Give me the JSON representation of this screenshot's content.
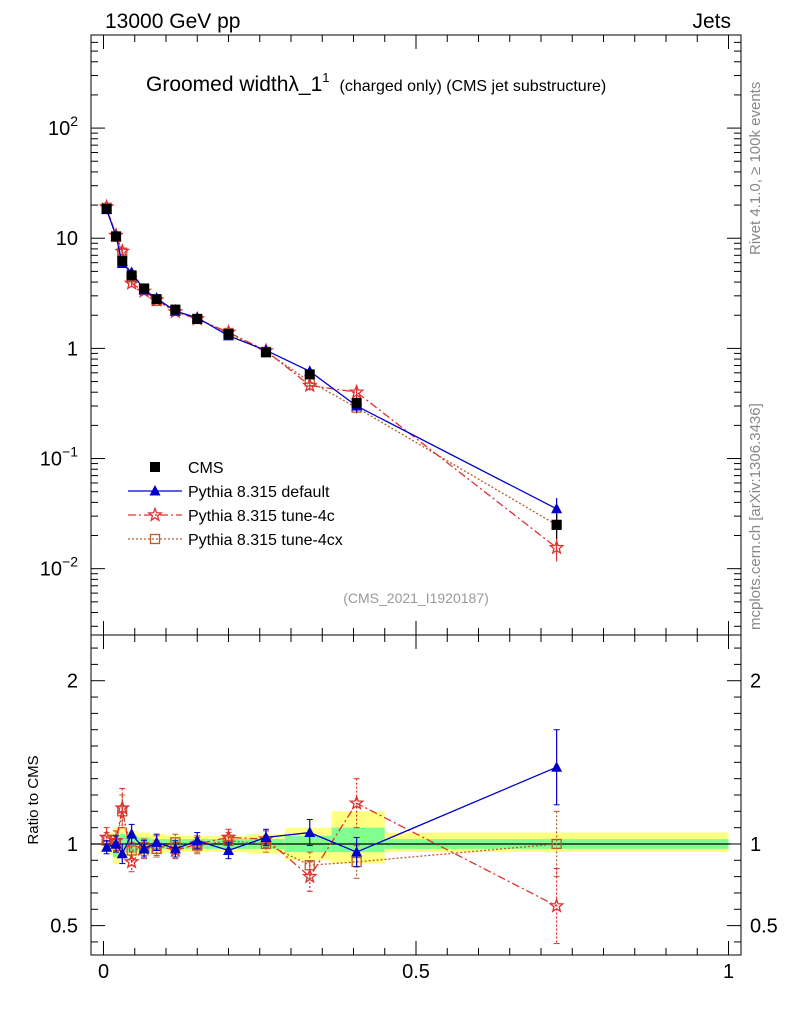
{
  "header": {
    "left": "13000 GeV pp",
    "right": "Jets"
  },
  "side_labels": {
    "rivet": "Rivet 4.1.0, ≥ 100k events",
    "mcplots": "mcplots.cern.ch [arXiv:1306.3436]"
  },
  "title": {
    "main": "Groomed widthλ_1",
    "sup": "1",
    "sub": "(charged only) (CMS jet substructure)"
  },
  "analysis_id": "(CMS_2021_I1920187)",
  "colors": {
    "cms": "#000000",
    "default": "#0000cc",
    "tune4c": "#e03030",
    "tune4cx": "#b85c2e",
    "band_inner": "#80ff90",
    "band_outer": "#ffff80"
  },
  "chart_data": [
    {
      "type": "line",
      "scale": "log",
      "xlim": [
        -0.02,
        1.02
      ],
      "ylim": [
        0.0025,
        700
      ],
      "y_ticks": [
        {
          "value": 100,
          "label": "10",
          "exp": "2"
        },
        {
          "value": 10,
          "label": "10",
          "exp": ""
        },
        {
          "value": 1,
          "label": "1",
          "exp": ""
        },
        {
          "value": 0.1,
          "label": "10",
          "exp": "−1"
        },
        {
          "value": 0.01,
          "label": "10",
          "exp": "−2"
        }
      ],
      "x": [
        0.005,
        0.02,
        0.03,
        0.045,
        0.065,
        0.085,
        0.115,
        0.15,
        0.2,
        0.26,
        0.33,
        0.405,
        0.725
      ],
      "series": [
        {
          "name": "CMS",
          "key": "cms",
          "marker": "square",
          "values": [
            18.5,
            10.4,
            6.2,
            4.6,
            3.5,
            2.8,
            2.25,
            1.85,
            1.35,
            0.92,
            0.58,
            0.32,
            0.025
          ]
        },
        {
          "name": "Pythia 8.315 default",
          "key": "default",
          "marker": "triangle",
          "values": [
            18.2,
            10.5,
            5.9,
            4.9,
            3.4,
            2.85,
            2.18,
            1.9,
            1.3,
            0.96,
            0.62,
            0.3,
            0.035
          ]
        },
        {
          "name": "Pythia 8.315 tune-4c",
          "key": "tune4c",
          "marker": "star",
          "values": [
            19.2,
            10.6,
            7.6,
            3.9,
            3.3,
            2.75,
            2.15,
            1.85,
            1.4,
            0.95,
            0.46,
            0.4,
            0.0155
          ]
        },
        {
          "name": "Pythia 8.315 tune-4cx",
          "key": "tune4cx",
          "marker": "open-square",
          "values": [
            18.9,
            10.3,
            7.4,
            4.4,
            3.4,
            2.7,
            2.2,
            1.85,
            1.38,
            0.93,
            0.5,
            0.29,
            0.025
          ]
        }
      ]
    },
    {
      "type": "line",
      "scale": "linear",
      "ylabel": "Ratio to CMS",
      "xlim": [
        -0.02,
        1.02
      ],
      "ylim": [
        0.32,
        2.28
      ],
      "y_ticks": [
        {
          "value": 2,
          "label": "2"
        },
        {
          "value": 1,
          "label": "1"
        },
        {
          "value": 0.5,
          "label": "0.5"
        }
      ],
      "x_ticks": [
        {
          "value": 0,
          "label": "0"
        },
        {
          "value": 0.5,
          "label": "0.5"
        },
        {
          "value": 1,
          "label": "1"
        }
      ],
      "bands": [
        {
          "x0": 0.01,
          "x1": 0.015,
          "inner": [
            0.97,
            1.03
          ],
          "outer": [
            0.93,
            1.07
          ]
        },
        {
          "x0": 0.015,
          "x1": 0.025,
          "inner": [
            0.92,
            1.06
          ],
          "outer": [
            0.88,
            1.1
          ]
        },
        {
          "x0": 0.025,
          "x1": 0.035,
          "inner": [
            0.95,
            1.06
          ],
          "outer": [
            0.91,
            1.1
          ]
        },
        {
          "x0": 0.035,
          "x1": 0.055,
          "inner": [
            0.95,
            1.05
          ],
          "outer": [
            0.92,
            1.08
          ]
        },
        {
          "x0": 0.055,
          "x1": 0.075,
          "inner": [
            0.96,
            1.04
          ],
          "outer": [
            0.93,
            1.07
          ]
        },
        {
          "x0": 0.075,
          "x1": 0.1,
          "inner": [
            0.97,
            1.03
          ],
          "outer": [
            0.94,
            1.06
          ]
        },
        {
          "x0": 0.1,
          "x1": 0.13,
          "inner": [
            0.97,
            1.03
          ],
          "outer": [
            0.95,
            1.05
          ]
        },
        {
          "x0": 0.13,
          "x1": 0.17,
          "inner": [
            0.97,
            1.03
          ],
          "outer": [
            0.95,
            1.05
          ]
        },
        {
          "x0": 0.17,
          "x1": 0.23,
          "inner": [
            0.97,
            1.03
          ],
          "outer": [
            0.95,
            1.05
          ]
        },
        {
          "x0": 0.23,
          "x1": 0.29,
          "inner": [
            0.97,
            1.03
          ],
          "outer": [
            0.94,
            1.06
          ]
        },
        {
          "x0": 0.29,
          "x1": 0.365,
          "inner": [
            0.95,
            1.05
          ],
          "outer": [
            0.9,
            1.1
          ]
        },
        {
          "x0": 0.365,
          "x1": 0.45,
          "inner": [
            0.95,
            1.1
          ],
          "outer": [
            0.88,
            1.2
          ]
        },
        {
          "x0": 0.45,
          "x1": 1.0,
          "inner": [
            0.97,
            1.03
          ],
          "outer": [
            0.95,
            1.07
          ]
        }
      ],
      "x": [
        0.005,
        0.02,
        0.03,
        0.045,
        0.065,
        0.085,
        0.115,
        0.15,
        0.2,
        0.26,
        0.33,
        0.405,
        0.725
      ],
      "series": [
        {
          "name": "Pythia 8.315 default",
          "key": "default",
          "marker": "triangle",
          "values": [
            0.98,
            1.0,
            0.94,
            1.06,
            0.97,
            1.01,
            0.97,
            1.02,
            0.96,
            1.04,
            1.07,
            0.95,
            1.47
          ],
          "err": [
            0.04,
            0.05,
            0.06,
            0.06,
            0.05,
            0.05,
            0.05,
            0.05,
            0.05,
            0.05,
            0.08,
            0.09,
            0.23
          ]
        },
        {
          "name": "Pythia 8.315 tune-4c",
          "key": "tune4c",
          "marker": "star",
          "values": [
            1.04,
            1.02,
            1.22,
            0.89,
            0.97,
            0.99,
            0.96,
            1.0,
            1.04,
            1.03,
            0.8,
            1.25,
            0.62
          ],
          "err": [
            0.06,
            0.06,
            0.12,
            0.06,
            0.06,
            0.06,
            0.05,
            0.05,
            0.05,
            0.05,
            0.09,
            0.15,
            0.23
          ]
        },
        {
          "name": "Pythia 8.315 tune-4cx",
          "key": "tune4cx",
          "marker": "open-square",
          "values": [
            1.02,
            1.0,
            1.2,
            0.96,
            0.98,
            0.97,
            1.01,
            0.99,
            1.02,
            1.0,
            0.87,
            0.89,
            1.0
          ],
          "err": [
            0.05,
            0.05,
            0.1,
            0.05,
            0.05,
            0.05,
            0.05,
            0.05,
            0.05,
            0.05,
            0.08,
            0.1,
            0.2
          ]
        }
      ]
    }
  ]
}
